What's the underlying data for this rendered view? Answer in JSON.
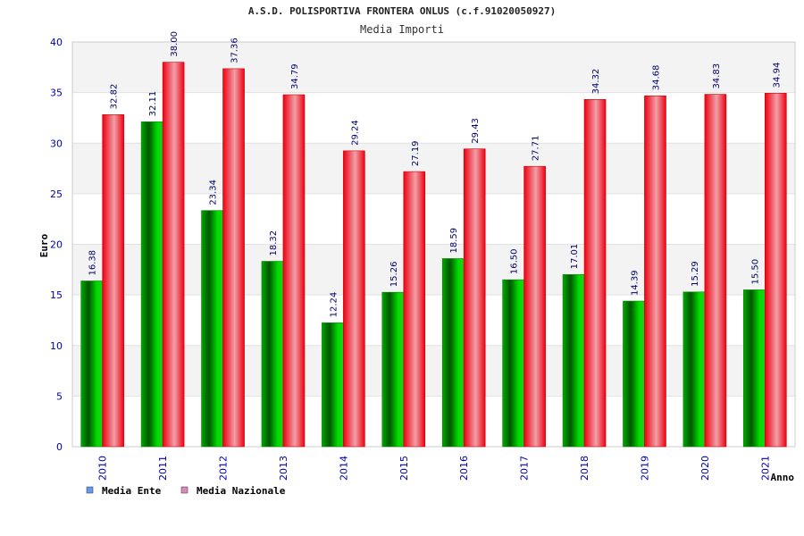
{
  "chart_data": {
    "type": "bar",
    "title": "A.S.D. POLISPORTIVA FRONTERA ONLUS (c.f.91020050927)",
    "subtitle": "Media Importi",
    "xlabel": "Anno",
    "ylabel": "Euro",
    "ylim": [
      0,
      40
    ],
    "yticks": [
      "0",
      "5",
      "10",
      "15",
      "20",
      "25",
      "30",
      "35",
      "40"
    ],
    "grid": true,
    "legend_position": "bottom-left",
    "categories": [
      "2010",
      "2011",
      "2012",
      "2013",
      "2014",
      "2015",
      "2016",
      "2017",
      "2018",
      "2019",
      "2020",
      "2021"
    ],
    "series": [
      {
        "name": "Media Ente",
        "color": "#00bb00",
        "legend_color": "#6699ee",
        "values": [
          16.38,
          32.11,
          23.34,
          18.32,
          12.24,
          15.26,
          18.59,
          16.5,
          17.01,
          14.39,
          15.29,
          15.5
        ],
        "labels": [
          "16.38",
          "32.11",
          "23.34",
          "18.32",
          "12.24",
          "15.26",
          "18.59",
          "16.50",
          "17.01",
          "14.39",
          "15.29",
          "15.50"
        ]
      },
      {
        "name": "Media Nazionale",
        "color": "#ee1122",
        "legend_color": "#dd88bb",
        "values": [
          32.82,
          38.0,
          37.36,
          34.79,
          29.24,
          27.19,
          29.43,
          27.71,
          34.32,
          34.68,
          34.83,
          34.94
        ],
        "labels": [
          "32.82",
          "38.00",
          "37.36",
          "34.79",
          "29.24",
          "27.19",
          "29.43",
          "27.71",
          "34.32",
          "34.68",
          "34.83",
          "34.94"
        ]
      }
    ]
  }
}
